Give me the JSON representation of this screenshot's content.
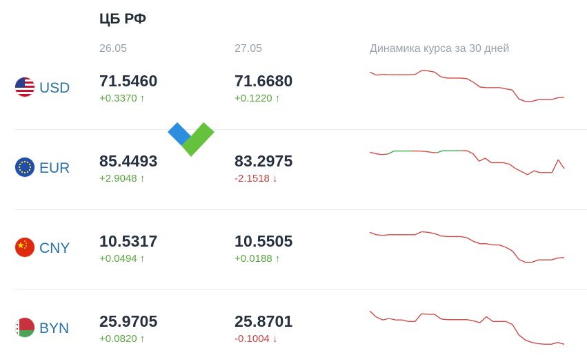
{
  "header": {
    "title": "ЦБ РФ",
    "date1": "26.05",
    "date2": "27.05",
    "spark_label": "Динамика курса за 30 дней"
  },
  "rows": [
    {
      "code": "USD",
      "flag_icon": "us-flag-icon",
      "val1": "71.5460",
      "chg1": "+0.3370 ↑",
      "dir1": "up",
      "val2": "71.6680",
      "chg2": "+0.1220 ↑",
      "dir2": "up",
      "spark": [
        0.8,
        0.7,
        0.72,
        0.71,
        0.71,
        0.71,
        0.71,
        0.72,
        0.85,
        0.84,
        0.8,
        0.64,
        0.6,
        0.6,
        0.6,
        0.58,
        0.46,
        0.3,
        0.28,
        0.28,
        0.28,
        0.24,
        0.2,
        -0.1,
        -0.18,
        -0.18,
        -0.12,
        -0.12,
        -0.12,
        -0.06,
        -0.04
      ],
      "spark_green": []
    },
    {
      "code": "EUR",
      "flag_icon": "eu-flag-icon",
      "val1": "85.4493",
      "chg1": "+2.9048 ↑",
      "dir1": "up",
      "val2": "83.2975",
      "chg2": "-2.1518 ↓",
      "dir2": "down",
      "spark": [
        0.8,
        0.75,
        0.72,
        0.74,
        0.84,
        0.84,
        0.84,
        0.84,
        0.84,
        0.83,
        0.8,
        0.78,
        0.85,
        0.85,
        0.85,
        0.85,
        0.85,
        0.75,
        0.5,
        0.6,
        0.45,
        0.45,
        0.45,
        0.4,
        0.25,
        0.15,
        0.05,
        0.18,
        0.12,
        0.12,
        0.12,
        0.55,
        0.25
      ],
      "spark_green": [
        3,
        4,
        5,
        6,
        7,
        11,
        12,
        13,
        14,
        15
      ]
    },
    {
      "code": "CNY",
      "flag_icon": "cn-flag-icon",
      "val1": "10.5317",
      "chg1": "+0.0494 ↑",
      "dir1": "up",
      "val2": "10.5505",
      "chg2": "+0.0188 ↑",
      "dir2": "up",
      "spark": [
        0.8,
        0.72,
        0.7,
        0.72,
        0.72,
        0.72,
        0.72,
        0.72,
        0.82,
        0.8,
        0.76,
        0.68,
        0.66,
        0.66,
        0.66,
        0.62,
        0.5,
        0.42,
        0.42,
        0.38,
        0.38,
        0.3,
        0.18,
        -0.1,
        -0.2,
        -0.2,
        -0.12,
        -0.12,
        -0.12,
        -0.06,
        -0.04
      ],
      "spark_green": []
    },
    {
      "code": "BYN",
      "flag_icon": "by-flag-icon",
      "val1": "25.9705",
      "chg1": "+0.0820 ↑",
      "dir1": "up",
      "val2": "25.8701",
      "chg2": "-0.1004 ↓",
      "dir2": "down",
      "spark": [
        0.85,
        0.65,
        0.55,
        0.6,
        0.55,
        0.55,
        0.5,
        0.5,
        0.76,
        0.74,
        0.74,
        0.58,
        0.56,
        0.56,
        0.56,
        0.56,
        0.52,
        0.46,
        0.66,
        0.5,
        0.5,
        0.5,
        0.4,
        0.05,
        -0.12,
        -0.2,
        -0.24,
        -0.26,
        -0.26,
        -0.2,
        -0.26
      ],
      "spark_green": []
    }
  ],
  "colors": {
    "up": "#58a83f",
    "down": "#d0413f",
    "spark_red": "#d24a45",
    "spark_green": "#3aa84a",
    "logo_blue": "#2d8ee0",
    "logo_green": "#5cbf32"
  }
}
